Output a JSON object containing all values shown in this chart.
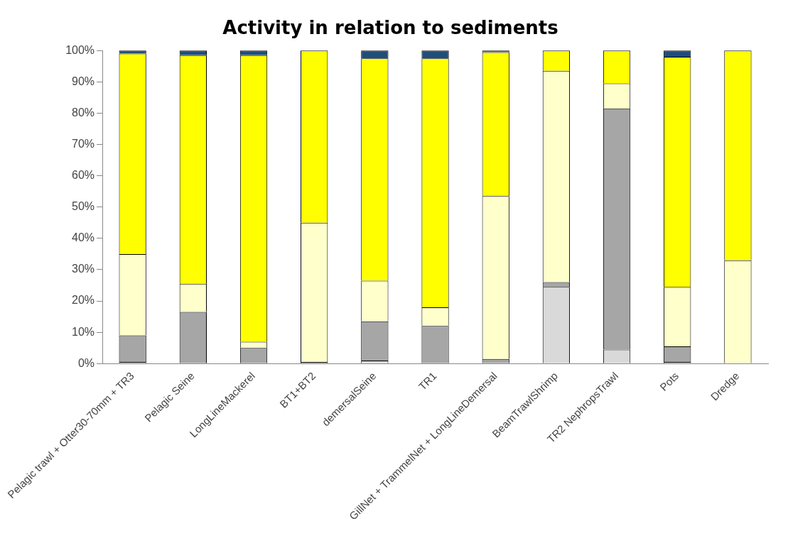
{
  "chart_data": {
    "type": "bar",
    "title": "Activity in relation to sediments",
    "stacked": true,
    "categories": [
      "Pelagic trawl + Otter30-70mm + TR3",
      "Pelagic Seine",
      "LongLineMackerel",
      "BT1+BT2",
      "demersalSeine",
      "TR1",
      "GillNet + TrammelNet + LongLineDemersal",
      "BeamTrawlShrimp",
      "TR2 NephropsTrawl",
      "Pots",
      "Dredge"
    ],
    "series": [
      {
        "color": "#d9d9d9",
        "values": [
          0.5,
          0,
          0,
          0,
          1,
          0,
          0,
          24.5,
          4.5,
          0.5,
          0
        ]
      },
      {
        "color": "#a6a6a6",
        "values": [
          8.5,
          16.5,
          5,
          0.5,
          12.5,
          12,
          1.5,
          1.5,
          77,
          5,
          0
        ]
      },
      {
        "color": "#ffffcc",
        "values": [
          26,
          9,
          2,
          44.5,
          13,
          6,
          52,
          67.5,
          8,
          19,
          33
        ]
      },
      {
        "color": "#ffff00",
        "values": [
          64,
          73,
          91.5,
          55,
          71,
          79.5,
          46,
          6.5,
          10.5,
          73.5,
          67
        ]
      },
      {
        "color": "#1f4e79",
        "values": [
          1,
          1.5,
          1.5,
          0,
          2.5,
          2.5,
          0.5,
          0,
          0,
          2,
          0
        ]
      }
    ],
    "ylim": [
      0,
      100
    ],
    "yticks": [
      {
        "value": 0,
        "label": "0%"
      },
      {
        "value": 10,
        "label": "10%"
      },
      {
        "value": 20,
        "label": "20%"
      },
      {
        "value": 30,
        "label": "30%"
      },
      {
        "value": 40,
        "label": "40%"
      },
      {
        "value": 50,
        "label": "50%"
      },
      {
        "value": 60,
        "label": "60%"
      },
      {
        "value": 70,
        "label": "70%"
      },
      {
        "value": 80,
        "label": "80%"
      },
      {
        "value": 90,
        "label": "90%"
      },
      {
        "value": 100,
        "label": "100%"
      }
    ],
    "grid": false,
    "legend": false
  }
}
